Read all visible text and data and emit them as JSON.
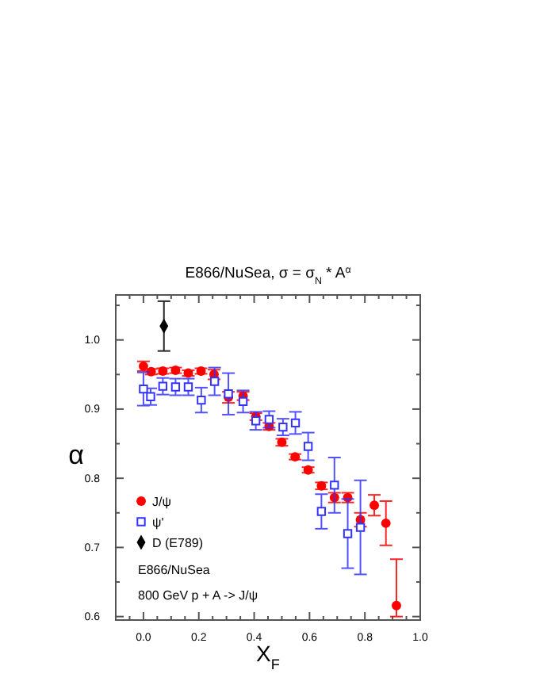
{
  "chart_data": {
    "type": "scatter",
    "title": "E866/NuSea, σ = σ$_{N}$ * A$^{α}$",
    "xlabel": "X$_{F}$",
    "ylabel": "α",
    "xlim": [
      -0.1,
      1.0
    ],
    "ylim": [
      0.595,
      1.065
    ],
    "xticks": [
      {
        "value": 0.0,
        "label": "0.0"
      },
      0.2,
      0.4,
      0.6,
      0.8,
      {
        "value": 1.0,
        "label": "1.0"
      },
      {
        "value": -0.05,
        "label": null
      },
      {
        "value": 0.05,
        "label": null
      },
      {
        "value": 0.1,
        "label": null
      },
      {
        "value": 0.15,
        "label": null
      },
      {
        "value": 0.25,
        "label": null
      },
      {
        "value": 0.3,
        "label": null
      },
      {
        "value": 0.35,
        "label": null
      },
      {
        "value": 0.45,
        "label": null
      },
      {
        "value": 0.5,
        "label": null
      },
      {
        "value": 0.55,
        "label": null
      },
      {
        "value": 0.65,
        "label": null
      },
      {
        "value": 0.7,
        "label": null
      },
      {
        "value": 0.75,
        "label": null
      },
      {
        "value": 0.85,
        "label": null
      },
      {
        "value": 0.9,
        "label": null
      },
      {
        "value": 0.95,
        "label": null
      }
    ],
    "yticks": [
      0.6,
      0.7,
      0.8,
      0.9,
      {
        "value": 1.0,
        "label": "1.0"
      },
      {
        "value": 0.65,
        "label": null
      },
      {
        "value": 0.75,
        "label": null
      },
      {
        "value": 0.85,
        "label": null
      },
      {
        "value": 0.95,
        "label": null
      },
      {
        "value": 1.05,
        "label": null
      }
    ],
    "legend": "bottom left",
    "grid": false,
    "series": [
      {
        "name": "J/ψ",
        "color": "#ff0000",
        "marker": "circle",
        "x": [
          0.0,
          0.028,
          0.07,
          0.116,
          0.162,
          0.208,
          0.255,
          0.307,
          0.36,
          0.406,
          0.454,
          0.5,
          0.548,
          0.595,
          0.643,
          0.69,
          0.738,
          0.784,
          0.834,
          0.876,
          0.914
        ],
        "values": [
          0.962,
          0.954,
          0.955,
          0.956,
          0.952,
          0.955,
          0.95,
          0.917,
          0.919,
          0.889,
          0.875,
          0.852,
          0.831,
          0.812,
          0.789,
          0.772,
          0.772,
          0.74,
          0.761,
          0.735,
          0.616
        ],
        "errors": [
          0.007,
          0.004,
          0.004,
          0.004,
          0.004,
          0.004,
          0.007,
          0.008,
          0.006,
          0.005,
          0.005,
          0.005,
          0.004,
          0.004,
          0.005,
          0.007,
          0.007,
          0.01,
          0.015,
          0.032,
          [
            0.6,
            0.683
          ]
        ]
      },
      {
        "name": "ψ'",
        "color": "#3333ff",
        "marker": "square",
        "x": [
          0.0,
          0.026,
          0.07,
          0.116,
          0.162,
          0.209,
          0.257,
          0.307,
          0.36,
          0.406,
          0.454,
          0.504,
          0.549,
          0.595,
          0.643,
          0.69,
          0.738,
          0.784
        ],
        "values": [
          0.929,
          0.918,
          0.933,
          0.932,
          0.932,
          0.913,
          0.94,
          0.922,
          0.911,
          0.883,
          0.885,
          0.874,
          0.88,
          0.846,
          0.752,
          0.79,
          0.72,
          0.729
        ],
        "errors": [
          0.024,
          0.012,
          0.012,
          0.012,
          0.012,
          0.018,
          0.02,
          0.03,
          0.016,
          0.013,
          0.012,
          0.012,
          0.016,
          0.02,
          0.025,
          0.04,
          0.05,
          0.068
        ]
      },
      {
        "name": "D (E789)",
        "color": "#000000",
        "marker": "diamond",
        "x": [
          0.074
        ],
        "values": [
          1.02
        ],
        "errors": [
          0.036
        ]
      }
    ],
    "annotations": [
      "E866/NuSea",
      "800 GeV p + A -> J/ψ"
    ]
  }
}
